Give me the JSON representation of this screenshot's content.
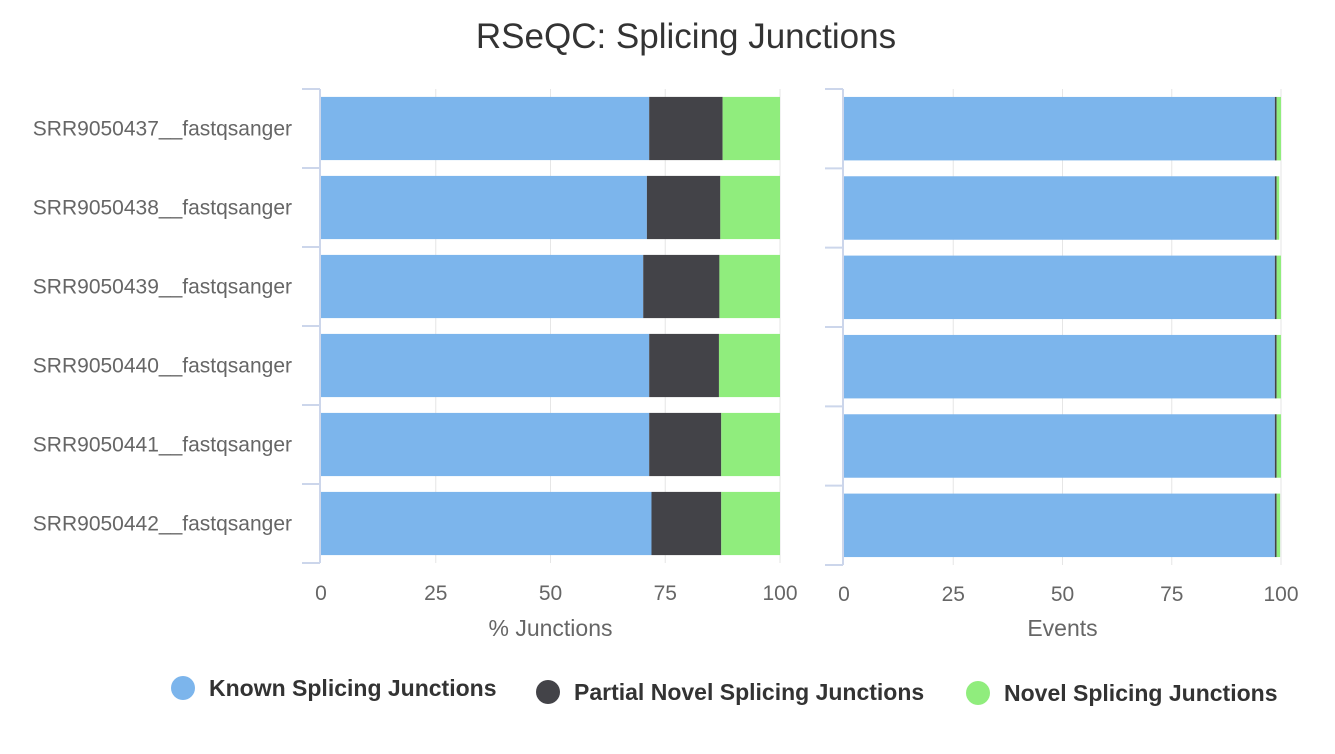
{
  "chart_data": [
    {
      "type": "bar",
      "orientation": "horizontal",
      "stacked": true,
      "title": "RSeQC: Splicing Junctions",
      "xlabel": "% Junctions",
      "xlim": [
        0,
        100
      ],
      "xticks": [
        "0",
        "25",
        "50",
        "75",
        "100"
      ],
      "categories": [
        "SRR9050437__fastqsanger",
        "SRR9050438__fastqsanger",
        "SRR9050439__fastqsanger",
        "SRR9050440__fastqsanger",
        "SRR9050441__fastqsanger",
        "SRR9050442__fastqsanger"
      ],
      "series": [
        {
          "name": "Known Splicing Junctions",
          "color": "#7cb5ec",
          "values": [
            71.5,
            71,
            70.2,
            71.5,
            71.5,
            72
          ]
        },
        {
          "name": "Partial Novel Splicing Junctions",
          "color": "#434348",
          "values": [
            16,
            16,
            16.6,
            15.2,
            15.7,
            15.2
          ]
        },
        {
          "name": "Novel Splicing Junctions",
          "color": "#90ed7d",
          "values": [
            12.5,
            13,
            13.2,
            13.3,
            12.8,
            12.8
          ]
        }
      ],
      "grid": true
    },
    {
      "type": "bar",
      "orientation": "horizontal",
      "stacked": true,
      "xlabel": "Events",
      "xlim": [
        0,
        100
      ],
      "xticks": [
        "0",
        "25",
        "50",
        "75",
        "100"
      ],
      "categories": [
        "SRR9050437__fastqsanger",
        "SRR9050438__fastqsanger",
        "SRR9050439__fastqsanger",
        "SRR9050440__fastqsanger",
        "SRR9050441__fastqsanger",
        "SRR9050442__fastqsanger"
      ],
      "series": [
        {
          "name": "Known Splicing Junctions",
          "color": "#7cb5ec",
          "values": [
            98.6,
            98.6,
            98.6,
            98.6,
            98.6,
            98.6
          ]
        },
        {
          "name": "Partial Novel Splicing Junctions",
          "color": "#434348",
          "values": [
            0.4,
            0.4,
            0.4,
            0.4,
            0.4,
            0.4
          ]
        },
        {
          "name": "Novel Splicing Junctions",
          "color": "#90ed7d",
          "values": [
            1.0,
            0.6,
            1.0,
            1.0,
            1.0,
            0.8
          ]
        }
      ],
      "grid": true
    }
  ],
  "legend": {
    "placement": "bottom",
    "items": [
      {
        "label": "Known Splicing Junctions",
        "color": "#7cb5ec"
      },
      {
        "label": "Partial Novel Splicing Junctions",
        "color": "#434348"
      },
      {
        "label": "Novel Splicing Junctions",
        "color": "#90ed7d"
      }
    ]
  }
}
